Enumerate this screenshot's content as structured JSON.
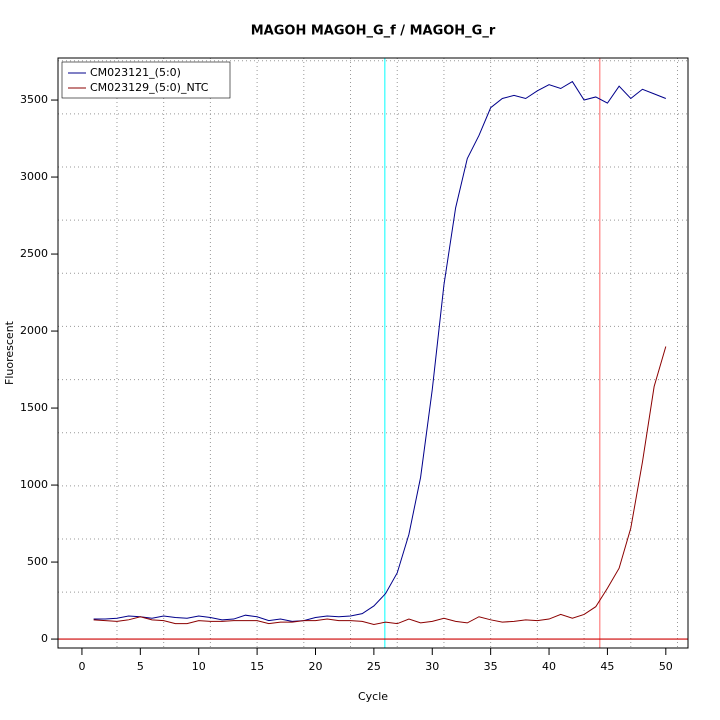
{
  "chart_data": {
    "type": "line",
    "title": "MAGOH  MAGOH_G_f / MAGOH_G_r",
    "x_label": "Cycle",
    "y_label": "Fluorescent",
    "x": [
      1,
      2,
      3,
      4,
      5,
      6,
      7,
      8,
      9,
      10,
      11,
      12,
      13,
      14,
      15,
      16,
      17,
      18,
      19,
      20,
      21,
      22,
      23,
      24,
      25,
      26,
      27,
      28,
      29,
      30,
      31,
      32,
      33,
      34,
      35,
      36,
      37,
      38,
      39,
      40,
      41,
      42,
      43,
      44,
      45,
      46,
      47,
      48,
      49,
      50
    ],
    "series": [
      {
        "name": "CM023121_(5:0)",
        "color": "#00008b",
        "values": [
          130,
          130,
          135,
          150,
          145,
          135,
          150,
          140,
          135,
          150,
          140,
          125,
          130,
          155,
          145,
          120,
          130,
          115,
          120,
          140,
          150,
          145,
          150,
          165,
          215,
          295,
          430,
          680,
          1050,
          1620,
          2300,
          2800,
          3120,
          3270,
          3450,
          3510,
          3530,
          3510,
          3560,
          3600,
          3575,
          3620,
          3500,
          3520,
          3480,
          3590,
          3510,
          3570,
          3540,
          3510
        ]
      },
      {
        "name": "CM023129_(5:0)_NTC",
        "color": "#8b0000",
        "values": [
          125,
          120,
          115,
          125,
          145,
          125,
          120,
          100,
          100,
          120,
          115,
          115,
          120,
          120,
          120,
          100,
          110,
          110,
          120,
          120,
          130,
          120,
          120,
          115,
          95,
          110,
          100,
          130,
          105,
          115,
          135,
          115,
          105,
          145,
          125,
          110,
          115,
          125,
          120,
          130,
          160,
          135,
          160,
          210,
          330,
          460,
          720,
          1150,
          1640,
          1900
        ]
      }
    ],
    "xlim": [
      -2.05,
      51.9
    ],
    "ylim": [
      -58,
      3773
    ],
    "xticks": [
      0,
      5,
      10,
      15,
      20,
      25,
      30,
      35,
      40,
      45,
      50
    ],
    "yticks": [
      0,
      500,
      1000,
      1500,
      2000,
      2500,
      3000,
      3500
    ],
    "xgrid": [
      3,
      7,
      11,
      15,
      19,
      23,
      27,
      31,
      35,
      39,
      43,
      47,
      51
    ],
    "ygrid": [
      305,
      650,
      995,
      1340,
      1685,
      2030,
      2375,
      2720,
      3065,
      3410,
      3755
    ],
    "vlines": [
      {
        "value": 25.94,
        "color": "#00ffff"
      },
      {
        "value": 44.35,
        "color": "#ff6666"
      }
    ],
    "hline": {
      "value": 0,
      "color": "#cc0000"
    },
    "legend": "top-left"
  }
}
